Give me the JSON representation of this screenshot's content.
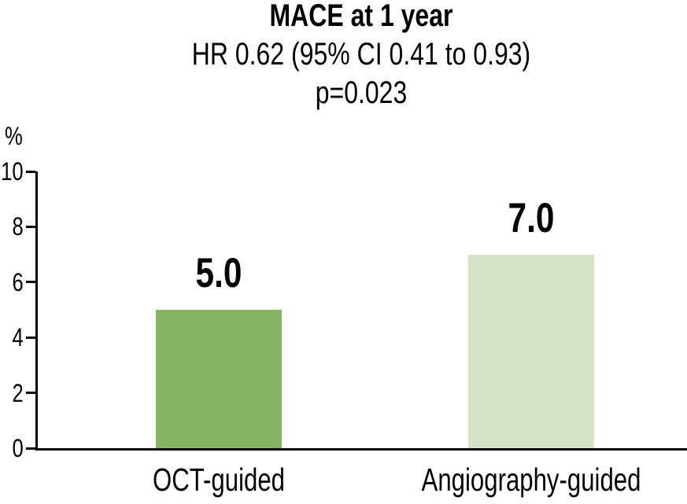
{
  "chart_data": {
    "type": "bar",
    "title": "MACE at 1 year",
    "subtitle": "HR 0.62 (95% CI 0.41 to 0.93)",
    "p_value": "p=0.023",
    "ylabel": "%",
    "categories": [
      "OCT-guided",
      "Angiography-guided"
    ],
    "values": [
      5.0,
      7.0
    ],
    "value_labels": [
      "5.0",
      "7.0"
    ],
    "bar_colors": [
      "#86b565",
      "#d6e3c6"
    ],
    "yticks": [
      0,
      2,
      4,
      6,
      8,
      10
    ],
    "ylim": [
      0,
      10
    ],
    "grid": false,
    "legend": "none",
    "axis_color": "#000000",
    "text_color": "#000000"
  }
}
